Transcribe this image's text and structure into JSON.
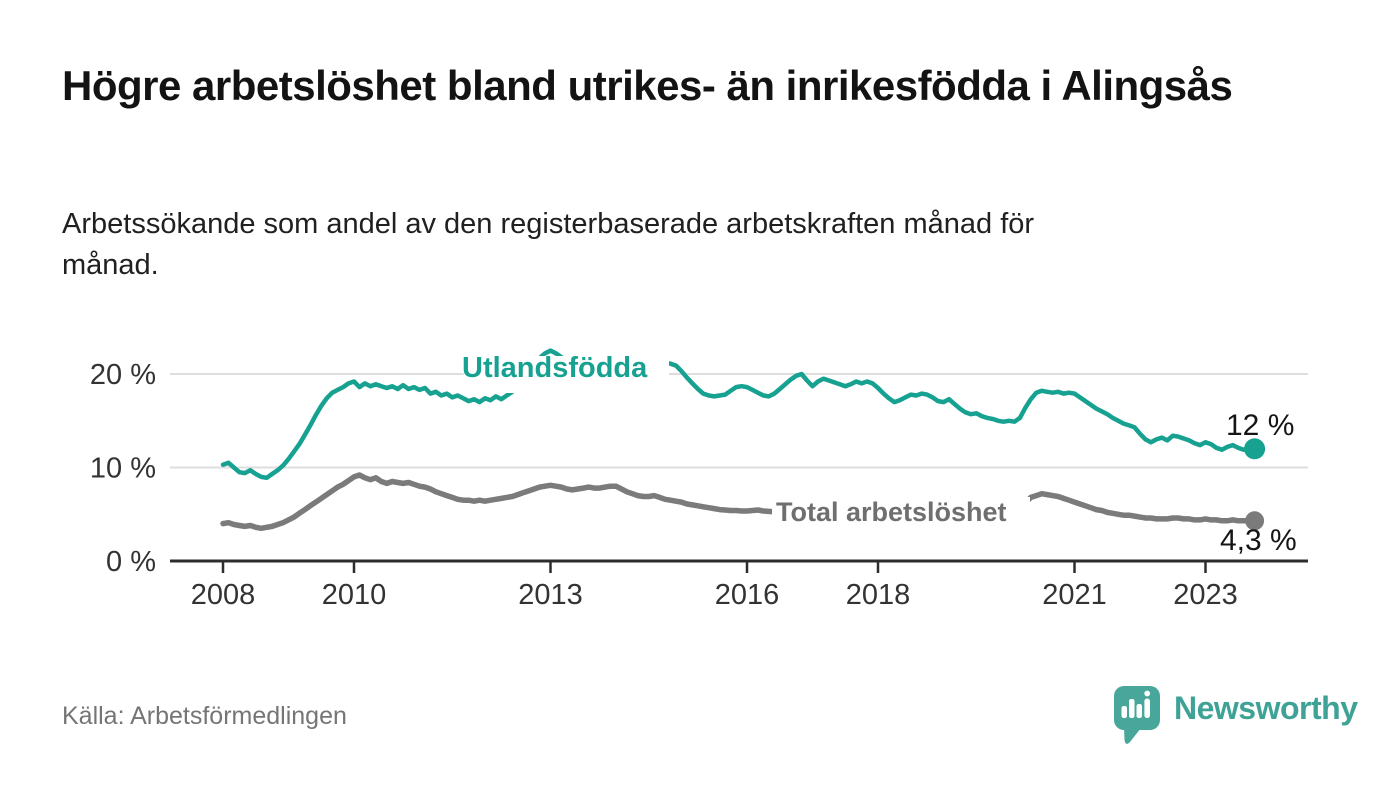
{
  "header": {
    "title": "Högre arbetslöshet bland utrikes- än inrikesfödda i Alingsås",
    "subtitle": "Arbetssökande som andel av den registerbaserade arbetskraften månad för månad."
  },
  "footer": {
    "source": "Källa: Arbetsförmedlingen",
    "brand": "Newsworthy",
    "brand_color": "#3ea296",
    "brand_icon": "speech-bubble-bar-chart-icon"
  },
  "chart_data": {
    "type": "line",
    "title": "Högre arbetslöshet bland utrikes- än inrikesfödda i Alingsås",
    "subtitle": "Arbetssökande som andel av den registerbaserade arbetskraften månad för månad.",
    "frequency": "monthly",
    "x_start": "2008-01",
    "x_end": "2023-10",
    "xlim": [
      2008,
      2024.6
    ],
    "ylim": [
      0,
      24
    ],
    "grid": "horizontal",
    "legend_position": "inline-labels",
    "x_ticks": [
      {
        "year": 2008,
        "label": "2008"
      },
      {
        "year": 2010,
        "label": "2010"
      },
      {
        "year": 2013,
        "label": "2013"
      },
      {
        "year": 2016,
        "label": "2016"
      },
      {
        "year": 2018,
        "label": "2018"
      },
      {
        "year": 2021,
        "label": "2021"
      },
      {
        "year": 2023,
        "label": "2023"
      }
    ],
    "y_ticks": [
      {
        "value": 0,
        "label": "0 %"
      },
      {
        "value": 10,
        "label": "10 %"
      },
      {
        "value": 20,
        "label": "20 %"
      }
    ],
    "series": [
      {
        "name": "Utlandsfödda",
        "color": "#16a191",
        "end_label": "12 %",
        "values": [
          10.3,
          10.5,
          10.0,
          9.5,
          9.4,
          9.7,
          9.3,
          9.0,
          8.9,
          9.3,
          9.7,
          10.2,
          10.9,
          11.7,
          12.5,
          13.5,
          14.5,
          15.6,
          16.6,
          17.4,
          18.0,
          18.3,
          18.6,
          19.0,
          19.2,
          18.6,
          19.0,
          18.7,
          18.9,
          18.7,
          18.5,
          18.7,
          18.4,
          18.8,
          18.4,
          18.6,
          18.3,
          18.5,
          17.9,
          18.1,
          17.7,
          17.9,
          17.5,
          17.7,
          17.4,
          17.1,
          17.3,
          17.0,
          17.4,
          17.2,
          17.6,
          17.3,
          17.7,
          18.1,
          18.6,
          19.3,
          20.1,
          20.9,
          21.7,
          22.2,
          22.5,
          22.2,
          21.8,
          21.5,
          21.3,
          21.1,
          20.9,
          21.1,
          21.3,
          21.1,
          20.9,
          21.0,
          21.1,
          21.3,
          21.1,
          20.9,
          21.1,
          21.2,
          21.0,
          20.9,
          21.1,
          21.2,
          21.1,
          20.9,
          20.3,
          19.6,
          19.0,
          18.4,
          17.9,
          17.7,
          17.6,
          17.7,
          17.8,
          18.2,
          18.6,
          18.7,
          18.6,
          18.3,
          18.0,
          17.7,
          17.6,
          17.9,
          18.4,
          18.9,
          19.4,
          19.8,
          20.0,
          19.3,
          18.7,
          19.2,
          19.5,
          19.3,
          19.1,
          18.9,
          18.7,
          18.9,
          19.2,
          19.0,
          19.2,
          19.0,
          18.5,
          17.9,
          17.4,
          17.0,
          17.2,
          17.5,
          17.8,
          17.7,
          17.9,
          17.8,
          17.5,
          17.1,
          17.0,
          17.3,
          16.8,
          16.3,
          15.9,
          15.7,
          15.8,
          15.5,
          15.3,
          15.2,
          15.0,
          14.9,
          15.0,
          14.9,
          15.3,
          16.4,
          17.3,
          18.0,
          18.2,
          18.1,
          18.0,
          18.1,
          17.9,
          18.0,
          17.9,
          17.5,
          17.1,
          16.7,
          16.3,
          16.0,
          15.7,
          15.3,
          15.0,
          14.7,
          14.5,
          14.3,
          13.6,
          13.0,
          12.7,
          13.0,
          13.2,
          12.9,
          13.4,
          13.3,
          13.1,
          12.9,
          12.6,
          12.4,
          12.7,
          12.5,
          12.1,
          11.9,
          12.2,
          12.4,
          12.1,
          11.9,
          12.1,
          12.0
        ]
      },
      {
        "name": "Total arbetslöshet",
        "color": "#7b7b7b",
        "end_label": "4,3 %",
        "values": [
          4.0,
          4.1,
          3.9,
          3.8,
          3.7,
          3.8,
          3.6,
          3.5,
          3.6,
          3.7,
          3.9,
          4.1,
          4.4,
          4.7,
          5.1,
          5.5,
          5.9,
          6.3,
          6.7,
          7.1,
          7.5,
          7.9,
          8.2,
          8.6,
          9.0,
          9.2,
          8.9,
          8.7,
          8.9,
          8.5,
          8.3,
          8.5,
          8.4,
          8.3,
          8.4,
          8.2,
          8.0,
          7.9,
          7.7,
          7.4,
          7.2,
          7.0,
          6.8,
          6.6,
          6.5,
          6.5,
          6.4,
          6.5,
          6.4,
          6.5,
          6.6,
          6.7,
          6.8,
          6.9,
          7.1,
          7.3,
          7.5,
          7.7,
          7.9,
          8.0,
          8.1,
          8.0,
          7.9,
          7.7,
          7.6,
          7.7,
          7.8,
          7.9,
          7.8,
          7.8,
          7.9,
          8.0,
          8.0,
          7.7,
          7.4,
          7.2,
          7.0,
          6.9,
          6.9,
          7.0,
          6.8,
          6.6,
          6.5,
          6.4,
          6.3,
          6.1,
          6.0,
          5.9,
          5.8,
          5.7,
          5.6,
          5.5,
          5.45,
          5.4,
          5.4,
          5.35,
          5.35,
          5.4,
          5.45,
          5.35,
          5.3,
          5.25,
          5.2,
          5.1,
          5.0,
          4.95,
          4.9,
          4.85,
          4.8,
          4.75,
          4.7,
          4.65,
          4.6,
          4.55,
          4.5,
          4.5,
          4.45,
          4.4,
          4.4,
          4.35,
          4.3,
          4.3,
          4.25,
          4.2,
          4.2,
          4.15,
          4.1,
          4.1,
          4.15,
          4.2,
          4.2,
          4.25,
          4.3,
          4.3,
          4.35,
          4.4,
          4.4,
          4.45,
          4.5,
          4.55,
          4.6,
          4.65,
          4.7,
          4.8,
          4.9,
          5.0,
          5.4,
          6.2,
          6.8,
          7.0,
          7.2,
          7.1,
          7.0,
          6.9,
          6.7,
          6.5,
          6.3,
          6.1,
          5.9,
          5.7,
          5.5,
          5.4,
          5.2,
          5.1,
          5.0,
          4.9,
          4.9,
          4.8,
          4.7,
          4.6,
          4.6,
          4.5,
          4.5,
          4.5,
          4.6,
          4.6,
          4.5,
          4.5,
          4.4,
          4.4,
          4.5,
          4.4,
          4.4,
          4.3,
          4.3,
          4.4,
          4.3,
          4.3,
          4.3,
          4.3
        ]
      }
    ],
    "colors": {
      "grid": "#dedede",
      "axis": "#2d2d2d",
      "tick_text": "#333333"
    }
  }
}
